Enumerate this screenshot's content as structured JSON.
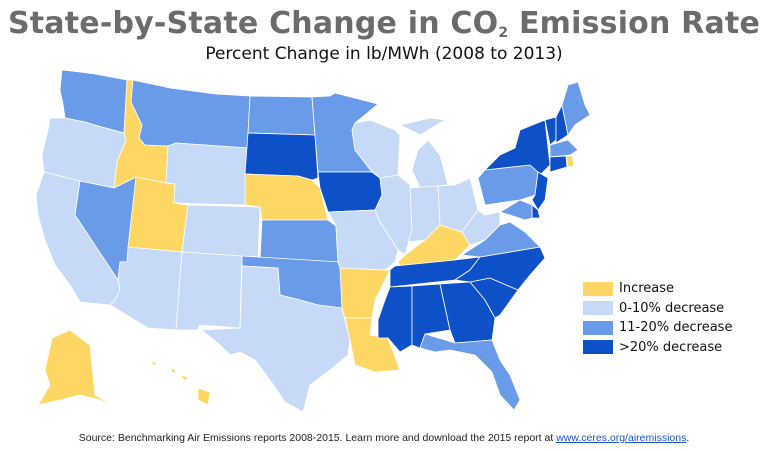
{
  "header": {
    "title_pre": "State-by-State Change in CO",
    "title_sub": "2",
    "title_post": " Emission Rate",
    "subtitle": "Percent Change in lb/MWh (2008 to 2013)"
  },
  "colors": {
    "increase": "#FDD663",
    "low": "#C6DAF7",
    "mid": "#6A9BE8",
    "high": "#0E50C8"
  },
  "legend": [
    {
      "key": "increase",
      "label": "Increase"
    },
    {
      "key": "low",
      "label": "0-10% decrease"
    },
    {
      "key": "mid",
      "label": "11-20% decrease"
    },
    {
      "key": "high",
      "label": ">20% decrease"
    }
  ],
  "states": {
    "WA": "mid",
    "OR": "low",
    "CA": "low",
    "ID": "increase",
    "NV": "mid",
    "UT": "increase",
    "AZ": "low",
    "MT": "mid",
    "WY": "low",
    "CO": "low",
    "NM": "low",
    "ND": "mid",
    "SD": "high",
    "NE": "increase",
    "KS": "mid",
    "OK": "mid",
    "TX": "low",
    "MN": "mid",
    "IA": "high",
    "MO": "low",
    "AR": "increase",
    "LA": "increase",
    "WI": "low",
    "IL": "low",
    "MI": "low",
    "IN": "low",
    "OH": "low",
    "KY": "increase",
    "TN": "high",
    "MS": "high",
    "AL": "high",
    "GA": "high",
    "FL": "mid",
    "SC": "high",
    "NC": "high",
    "VA": "mid",
    "WV": "low",
    "PA": "mid",
    "NY": "high",
    "VT": "high",
    "NH": "high",
    "ME": "mid",
    "MA": "mid",
    "RI": "increase",
    "CT": "high",
    "NJ": "high",
    "DE": "high",
    "MD": "mid",
    "AK": "increase",
    "HI": "increase"
  },
  "footer": {
    "source_text": "Source: Benchmarking Air Emissions reports 2008-2015. Learn more and download the 2015 report at ",
    "link_text": "www.ceres.org/airemissions",
    "end": "."
  }
}
